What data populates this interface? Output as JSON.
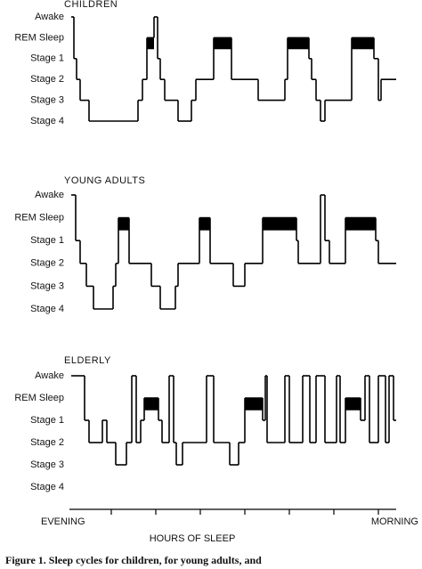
{
  "chart_data": [
    {
      "type": "step",
      "title": "CHILDREN",
      "color": "#000000",
      "x": [
        0.1,
        0.16,
        0.22,
        0.3,
        0.5,
        1.6,
        1.7,
        1.8,
        1.96,
        2.04,
        2.1,
        2.2,
        2.5,
        2.8,
        2.9,
        3.3,
        3.7,
        4.3,
        4.9,
        4.96,
        5.44,
        5.5,
        5.6,
        5.7,
        5.8,
        6.4,
        6.9,
        7.0,
        7.06,
        7.4
      ],
      "values": [
        0,
        2,
        3,
        4,
        5,
        4,
        3,
        1,
        0,
        2,
        3,
        4,
        5,
        4,
        3,
        1,
        3,
        4,
        3,
        1,
        2,
        3,
        4,
        5,
        4,
        1,
        2,
        4,
        3,
        3
      ],
      "rem": [
        [
          1.8,
          1.96
        ],
        [
          3.3,
          3.7
        ],
        [
          4.96,
          5.44
        ],
        [
          6.4,
          6.9
        ]
      ],
      "ylim": [
        5,
        0
      ],
      "xlim": [
        0,
        7.4
      ],
      "yticks": [
        {
          "value": 0,
          "label": "Awake"
        },
        {
          "value": 1,
          "label": "REM Sleep"
        },
        {
          "value": 2,
          "label": "Stage 1"
        },
        {
          "value": 3,
          "label": "Stage 2"
        },
        {
          "value": 4,
          "label": "Stage 3"
        },
        {
          "value": 5,
          "label": "Stage 4"
        }
      ]
    },
    {
      "type": "step",
      "title": "YOUNG ADULTS",
      "color": "#000000",
      "x": [
        0.1,
        0.2,
        0.3,
        0.44,
        0.6,
        1.04,
        1.1,
        1.16,
        1.4,
        1.9,
        2.1,
        2.44,
        2.5,
        2.98,
        3.22,
        3.74,
        4.0,
        4.4,
        5.16,
        5.2,
        5.7,
        5.8,
        5.9,
        6.26,
        6.94,
        7.0,
        7.4
      ],
      "values": [
        0,
        2,
        3,
        4,
        5,
        4,
        3,
        1,
        3,
        4,
        5,
        4,
        3,
        1,
        3,
        4,
        3,
        1,
        2,
        3,
        0,
        2,
        3,
        1,
        2,
        3,
        3
      ],
      "rem": [
        [
          1.16,
          1.4
        ],
        [
          2.98,
          3.22
        ],
        [
          4.4,
          5.16
        ],
        [
          6.26,
          6.94
        ]
      ],
      "ylim": [
        5,
        0
      ],
      "xlim": [
        0,
        7.4
      ],
      "yticks": [
        {
          "value": 0,
          "label": "Awake"
        },
        {
          "value": 1,
          "label": "REM Sleep"
        },
        {
          "value": 2,
          "label": "Stage 1"
        },
        {
          "value": 3,
          "label": "Stage 2"
        },
        {
          "value": 4,
          "label": "Stage 3"
        },
        {
          "value": 5,
          "label": "Stage 4"
        }
      ]
    },
    {
      "type": "step",
      "title": "ELDERLY",
      "color": "#000000",
      "x": [
        0.1,
        0.4,
        0.5,
        0.8,
        0.9,
        1.1,
        1.34,
        1.46,
        1.56,
        1.66,
        1.74,
        2.06,
        2.14,
        2.3,
        2.4,
        2.46,
        2.6,
        3.14,
        3.3,
        3.66,
        3.86,
        4.0,
        4.4,
        4.46,
        4.5,
        4.9,
        5.0,
        5.3,
        5.46,
        5.6,
        5.8,
        6.06,
        6.14,
        6.26,
        6.6,
        6.7,
        6.8,
        7.0,
        7.16,
        7.24,
        7.34,
        7.4
      ],
      "values": [
        0,
        2,
        3,
        2,
        3,
        4,
        3,
        0,
        3,
        2,
        1,
        2,
        3,
        0,
        3,
        4,
        3,
        0,
        3,
        4,
        3,
        1,
        2,
        0,
        3,
        0,
        3,
        0,
        3,
        0,
        3,
        0,
        3,
        1,
        2,
        0,
        3,
        0,
        3,
        0,
        2,
        2
      ],
      "rem": [
        [
          1.74,
          2.06
        ],
        [
          4.0,
          4.4
        ],
        [
          6.26,
          6.6
        ]
      ],
      "ylim": [
        5,
        0
      ],
      "xlim": [
        0,
        7.4
      ],
      "yticks": [
        {
          "value": 0,
          "label": "Awake"
        },
        {
          "value": 1,
          "label": "REM Sleep"
        },
        {
          "value": 2,
          "label": "Stage 1"
        },
        {
          "value": 3,
          "label": "Stage 2"
        },
        {
          "value": 4,
          "label": "Stage 3"
        },
        {
          "value": 5,
          "label": "Stage 4"
        }
      ],
      "xticks": [
        1,
        2,
        3,
        4,
        5,
        6,
        7
      ],
      "show_xtick_labels": false,
      "x_start_label": "EVENING",
      "x_end_label": "MORNING",
      "xlabel": "HOURS OF SLEEP"
    }
  ],
  "caption": "Figure 1. Sleep cycles for children, for young adults, and"
}
